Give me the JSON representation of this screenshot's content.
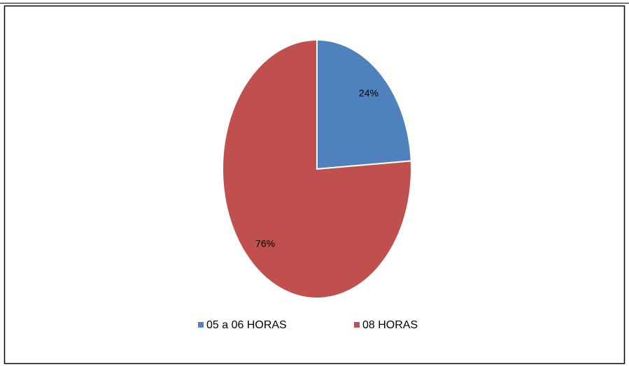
{
  "chart_data": {
    "type": "pie",
    "categories": [
      "05 a 06 HORAS",
      "08 HORAS"
    ],
    "values": [
      24,
      76
    ],
    "value_labels": [
      "24%",
      "76%"
    ],
    "colors": [
      "#4f81bd",
      "#c0504d"
    ],
    "legend": "bottom"
  }
}
